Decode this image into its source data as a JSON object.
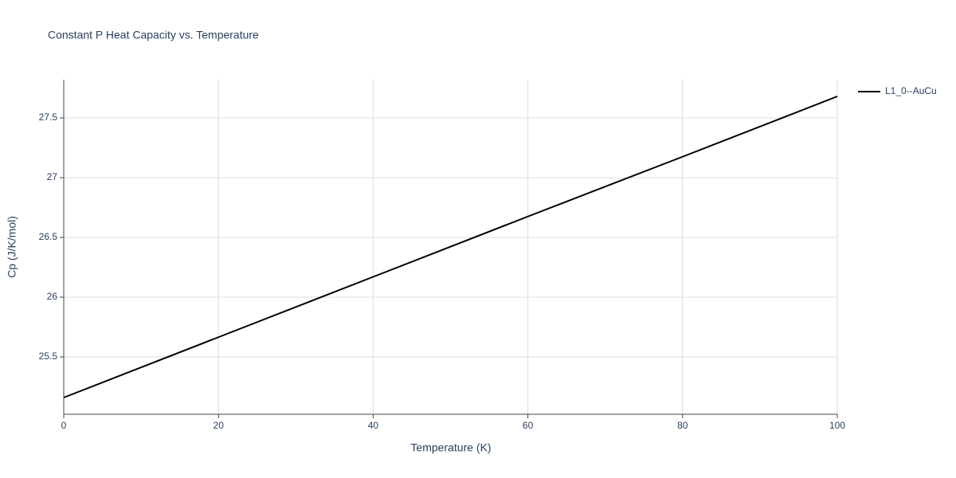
{
  "chart_data": {
    "type": "line",
    "title": "Constant P Heat Capacity vs. Temperature",
    "x_label": "Temperature (K)",
    "y_label": "Cp (J/K/mol)",
    "x": [
      0,
      20,
      40,
      60,
      80,
      100
    ],
    "series": [
      {
        "name": "L1_0--AuCu",
        "color": "#000000",
        "values": [
          25.16,
          25.665,
          26.17,
          26.675,
          27.175,
          27.68
        ]
      }
    ],
    "xlim": [
      0,
      100
    ],
    "xticks": [
      0,
      20,
      40,
      60,
      80,
      100
    ],
    "ylim": [
      25.02,
      27.82
    ],
    "yticks": [
      25.5,
      26,
      26.5,
      27,
      27.5
    ],
    "grid": true,
    "legend": "right"
  }
}
